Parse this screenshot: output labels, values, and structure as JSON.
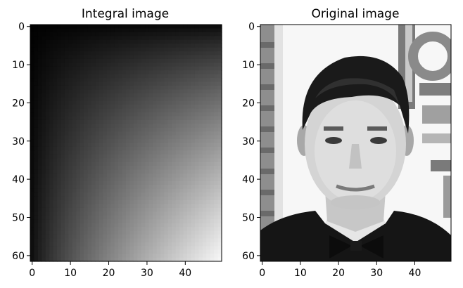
{
  "chart_data": [
    {
      "type": "heatmap",
      "title": "Integral image",
      "colormap": "gray",
      "shape": [
        62,
        50
      ],
      "xlim": [
        -0.5,
        49.5
      ],
      "ylim": [
        61.5,
        -0.5
      ],
      "xticks": [
        0,
        10,
        20,
        30,
        40
      ],
      "yticks": [
        0,
        10,
        20,
        30,
        40,
        50,
        60
      ],
      "description": "cumulative sum of pixel intensities; black at top-left increasing smoothly to white at bottom-right"
    },
    {
      "type": "heatmap",
      "title": "Original image",
      "colormap": "gray",
      "shape": [
        62,
        50
      ],
      "xlim": [
        -0.5,
        49.5
      ],
      "ylim": [
        61.5,
        -0.5
      ],
      "xticks": [
        0,
        10,
        20,
        30,
        40
      ],
      "yticks": [
        0,
        10,
        20,
        30,
        40,
        50,
        60
      ],
      "description": "low-resolution grayscale portrait of a man in a dark suit and bow tie"
    }
  ]
}
